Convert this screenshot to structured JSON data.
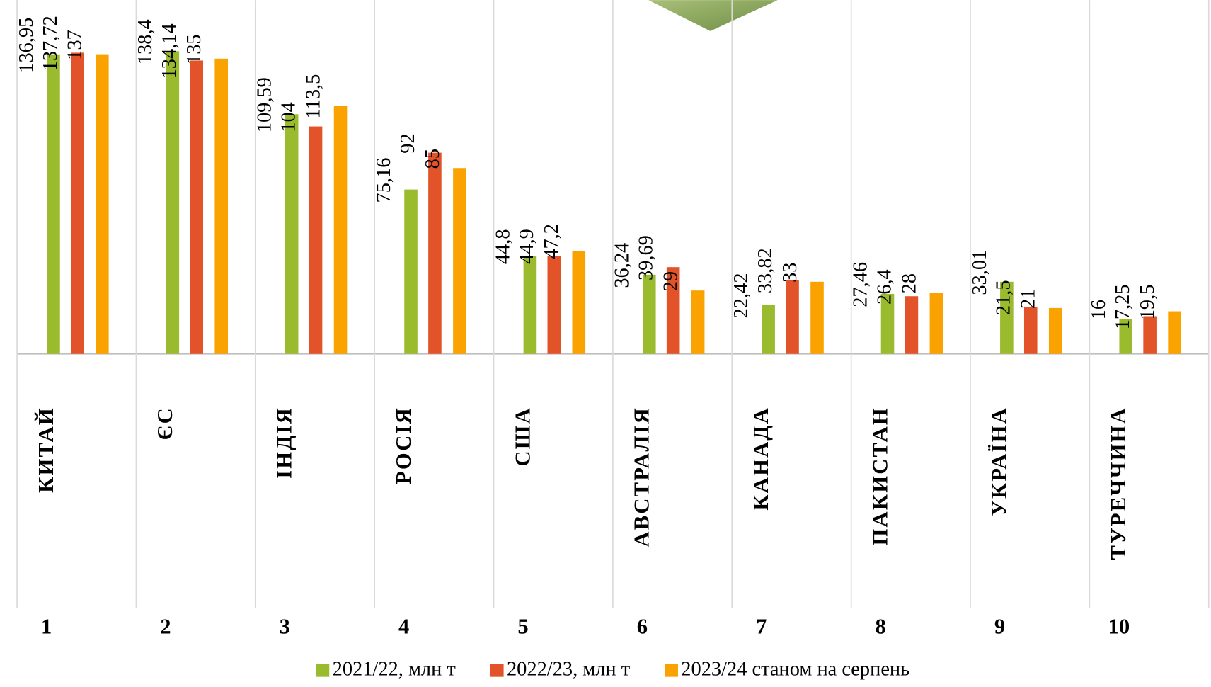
{
  "chart_data": {
    "type": "bar",
    "categories": [
      "КИТАЙ",
      "ЄС",
      "ІНДІЯ",
      "РОСІЯ",
      "США",
      "АВСТРАЛІЯ",
      "КАНАДА",
      "ПАКИСТАН",
      "УКРАЇНА",
      "ТУРЕЧЧИНА"
    ],
    "ranks": [
      "1",
      "2",
      "3",
      "4",
      "5",
      "6",
      "7",
      "8",
      "9",
      "10"
    ],
    "series": [
      {
        "name": "2021/22, млн т",
        "color": "#9bbb2f",
        "values": [
          136.95,
          138.4,
          109.59,
          75.16,
          44.8,
          36.24,
          22.42,
          27.46,
          33.01,
          16
        ],
        "value_labels": [
          "136,95",
          "138,4",
          "109,59",
          "75,16",
          "44,8",
          "36,24",
          "22,42",
          "27,46",
          "33,01",
          "16"
        ]
      },
      {
        "name": "2022/23, млн т",
        "color": "#e2532a",
        "values": [
          137.72,
          134.14,
          104,
          92,
          44.9,
          39.69,
          33.82,
          26.4,
          21.5,
          17.25
        ],
        "value_labels": [
          "137,72",
          "134,14",
          "104",
          "92",
          "44,9",
          "39,69",
          "33,82",
          "26,4",
          "21,5",
          "17,25"
        ]
      },
      {
        "name": "2023/24 станом на серпень",
        "color": "#f9a200",
        "values": [
          137,
          135,
          113.5,
          85,
          47.2,
          29,
          33,
          28,
          21,
          19.5
        ],
        "value_labels": [
          "137",
          "135",
          "113,5",
          "85",
          "47,2",
          "29",
          "33",
          "28",
          "21",
          "19,5"
        ]
      }
    ],
    "ylim": [
      0,
      160
    ]
  }
}
